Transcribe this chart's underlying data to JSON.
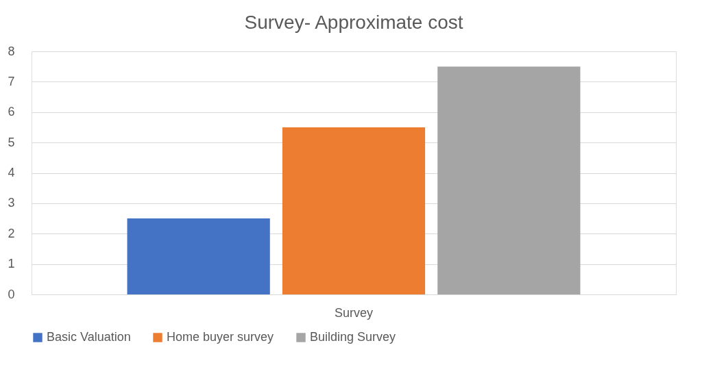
{
  "chart_data": {
    "type": "bar",
    "title": "Survey- Approximate cost",
    "categories": [
      "Survey"
    ],
    "series": [
      {
        "name": "Basic Valuation",
        "color": "#4472c4",
        "values": [
          2.5
        ]
      },
      {
        "name": "Home buyer survey",
        "color": "#ed7d31",
        "values": [
          5.5
        ]
      },
      {
        "name": "Building Survey",
        "color": "#a5a5a5",
        "values": [
          7.5
        ]
      }
    ],
    "ylim": [
      0,
      8
    ],
    "yticks": [
      0,
      1,
      2,
      3,
      4,
      5,
      6,
      7,
      8
    ],
    "grid": "y",
    "legend": "bottom"
  }
}
